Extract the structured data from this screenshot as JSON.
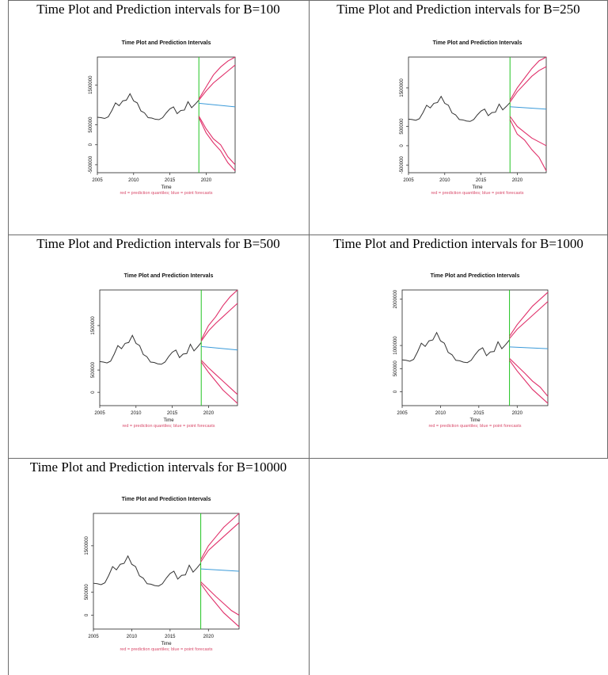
{
  "chart_data": [
    {
      "type": "line",
      "heading": "Time Plot and Prediction intervals for B=100",
      "title": "Time Plot and Prediction Intervals",
      "xlabel": "Time",
      "subtitle": "red = prediction quantiles; blue = point forecasts",
      "xlim": [
        2005,
        2024
      ],
      "ylim": [
        -700000,
        2200000
      ],
      "xticks": [
        2005,
        2010,
        2015,
        2020
      ],
      "yticks": [
        -500000,
        0,
        500000,
        1500000
      ],
      "ytick_labels": [
        "-500000",
        "0",
        "500000",
        "1500000"
      ],
      "split_year": 2019,
      "colors": {
        "history": "#333333",
        "intervals": "#e0306a",
        "forecast": "#3a9ad9",
        "split": "#22c422"
      },
      "history": {
        "x": [
          2005,
          2005.5,
          2006,
          2006.5,
          2007,
          2007.5,
          2008,
          2008.5,
          2009,
          2009.5,
          2010,
          2010.5,
          2011,
          2011.5,
          2012,
          2012.5,
          2013,
          2013.5,
          2014,
          2014.5,
          2015,
          2015.5,
          2016,
          2016.5,
          2017,
          2017.5,
          2018,
          2018.5,
          2019
        ],
        "y": [
          690000,
          680000,
          660000,
          700000,
          860000,
          1050000,
          980000,
          1100000,
          1120000,
          1280000,
          1100000,
          1050000,
          850000,
          800000,
          680000,
          670000,
          640000,
          630000,
          680000,
          800000,
          900000,
          950000,
          780000,
          860000,
          870000,
          1080000,
          930000,
          1020000,
          1120000
        ]
      },
      "forecast": {
        "x": [
          2019,
          2024
        ],
        "y": [
          1040000,
          950000
        ]
      },
      "upper_outer": {
        "x": [
          2019,
          2020,
          2021,
          2022,
          2023,
          2024
        ],
        "y": [
          1150000,
          1450000,
          1750000,
          1950000,
          2100000,
          2200000
        ]
      },
      "upper_inner": {
        "x": [
          2019,
          2020,
          2021,
          2022,
          2023,
          2024
        ],
        "y": [
          1120000,
          1350000,
          1550000,
          1700000,
          1850000,
          2000000
        ]
      },
      "lower_inner": {
        "x": [
          2019,
          2020,
          2021,
          2022,
          2023,
          2024
        ],
        "y": [
          720000,
          400000,
          150000,
          0,
          -300000,
          -500000
        ]
      },
      "lower_outer": {
        "x": [
          2019,
          2020,
          2021,
          2022,
          2023,
          2024
        ],
        "y": [
          680000,
          300000,
          50000,
          -150000,
          -450000,
          -650000
        ]
      }
    },
    {
      "type": "line",
      "heading": "Time Plot and Prediction intervals for B=250",
      "title": "Time Plot and Prediction Intervals",
      "xlabel": "Time",
      "subtitle": "red = prediction quantiles; blue = point forecasts",
      "xlim": [
        2005,
        2024
      ],
      "ylim": [
        -700000,
        2300000
      ],
      "xticks": [
        2005,
        2010,
        2015,
        2020
      ],
      "yticks": [
        -500000,
        0,
        500000,
        1500000
      ],
      "ytick_labels": [
        "-500000",
        "0",
        "500000",
        "1500000"
      ],
      "split_year": 2019,
      "colors": {
        "history": "#333333",
        "intervals": "#e0306a",
        "forecast": "#3a9ad9",
        "split": "#22c422"
      },
      "history": {
        "x": [
          2005,
          2005.5,
          2006,
          2006.5,
          2007,
          2007.5,
          2008,
          2008.5,
          2009,
          2009.5,
          2010,
          2010.5,
          2011,
          2011.5,
          2012,
          2012.5,
          2013,
          2013.5,
          2014,
          2014.5,
          2015,
          2015.5,
          2016,
          2016.5,
          2017,
          2017.5,
          2018,
          2018.5,
          2019
        ],
        "y": [
          690000,
          680000,
          660000,
          700000,
          860000,
          1050000,
          980000,
          1100000,
          1120000,
          1280000,
          1100000,
          1050000,
          850000,
          800000,
          680000,
          670000,
          640000,
          630000,
          680000,
          800000,
          900000,
          950000,
          780000,
          860000,
          870000,
          1080000,
          930000,
          1020000,
          1120000
        ]
      },
      "forecast": {
        "x": [
          2019,
          2024
        ],
        "y": [
          1010000,
          950000
        ]
      },
      "upper_outer": {
        "x": [
          2019,
          2020,
          2021,
          2022,
          2023,
          2024
        ],
        "y": [
          1180000,
          1500000,
          1750000,
          2000000,
          2200000,
          2300000
        ]
      },
      "upper_inner": {
        "x": [
          2019,
          2020,
          2021,
          2022,
          2023,
          2024
        ],
        "y": [
          1130000,
          1400000,
          1600000,
          1800000,
          1950000,
          2050000
        ]
      },
      "lower_inner": {
        "x": [
          2019,
          2020,
          2021,
          2022,
          2023,
          2024
        ],
        "y": [
          760000,
          500000,
          350000,
          200000,
          100000,
          0
        ]
      },
      "lower_outer": {
        "x": [
          2019,
          2020,
          2021,
          2022,
          2023,
          2024
        ],
        "y": [
          680000,
          300000,
          150000,
          -100000,
          -300000,
          -650000
        ]
      }
    },
    {
      "type": "line",
      "heading": "Time Plot and Prediction intervals for B=500",
      "title": "Time Plot and Prediction Intervals",
      "xlabel": "Time",
      "subtitle": "red = prediction quantiles; blue = point forecasts",
      "xlim": [
        2005,
        2024
      ],
      "ylim": [
        -300000,
        2300000
      ],
      "xticks": [
        2005,
        2010,
        2015,
        2020
      ],
      "yticks": [
        0,
        500000,
        1500000
      ],
      "ytick_labels": [
        "0",
        "500000",
        "1500000"
      ],
      "split_year": 2019,
      "colors": {
        "history": "#333333",
        "intervals": "#e0306a",
        "forecast": "#3a9ad9",
        "split": "#22c422"
      },
      "history": {
        "x": [
          2005,
          2005.5,
          2006,
          2006.5,
          2007,
          2007.5,
          2008,
          2008.5,
          2009,
          2009.5,
          2010,
          2010.5,
          2011,
          2011.5,
          2012,
          2012.5,
          2013,
          2013.5,
          2014,
          2014.5,
          2015,
          2015.5,
          2016,
          2016.5,
          2017,
          2017.5,
          2018,
          2018.5,
          2019
        ],
        "y": [
          690000,
          680000,
          660000,
          700000,
          860000,
          1050000,
          980000,
          1100000,
          1120000,
          1280000,
          1100000,
          1050000,
          850000,
          800000,
          680000,
          670000,
          640000,
          630000,
          680000,
          800000,
          900000,
          950000,
          780000,
          860000,
          870000,
          1080000,
          930000,
          1020000,
          1120000
        ]
      },
      "forecast": {
        "x": [
          2019,
          2024
        ],
        "y": [
          1030000,
          950000
        ]
      },
      "upper_outer": {
        "x": [
          2019,
          2020,
          2021,
          2022,
          2023,
          2024
        ],
        "y": [
          1180000,
          1500000,
          1700000,
          1950000,
          2150000,
          2300000
        ]
      },
      "upper_inner": {
        "x": [
          2019,
          2020,
          2021,
          2022,
          2023,
          2024
        ],
        "y": [
          1150000,
          1380000,
          1550000,
          1700000,
          1850000,
          2000000
        ]
      },
      "lower_inner": {
        "x": [
          2019,
          2020,
          2021,
          2022,
          2023,
          2024
        ],
        "y": [
          720000,
          550000,
          400000,
          250000,
          100000,
          -50000
        ]
      },
      "lower_outer": {
        "x": [
          2019,
          2020,
          2021,
          2022,
          2023,
          2024
        ],
        "y": [
          680000,
          450000,
          250000,
          50000,
          -100000,
          -250000
        ]
      }
    },
    {
      "type": "line",
      "heading": "Time Plot and Prediction intervals for B=1000",
      "title": "Time Plot and Prediction Intervals",
      "xlabel": "Time",
      "subtitle": "red = prediction quantiles; blue = point forecasts",
      "xlim": [
        2005,
        2024
      ],
      "ylim": [
        -300000,
        2200000
      ],
      "xticks": [
        2005,
        2010,
        2015,
        2020
      ],
      "yticks": [
        0,
        500000,
        1000000,
        2000000
      ],
      "ytick_labels": [
        "0",
        "500000",
        "1000000",
        "2000000"
      ],
      "split_year": 2019,
      "colors": {
        "history": "#333333",
        "intervals": "#e0306a",
        "forecast": "#3a9ad9",
        "split": "#22c422"
      },
      "history": {
        "x": [
          2005,
          2005.5,
          2006,
          2006.5,
          2007,
          2007.5,
          2008,
          2008.5,
          2009,
          2009.5,
          2010,
          2010.5,
          2011,
          2011.5,
          2012,
          2012.5,
          2013,
          2013.5,
          2014,
          2014.5,
          2015,
          2015.5,
          2016,
          2016.5,
          2017,
          2017.5,
          2018,
          2018.5,
          2019
        ],
        "y": [
          690000,
          680000,
          660000,
          700000,
          860000,
          1050000,
          980000,
          1100000,
          1120000,
          1280000,
          1100000,
          1050000,
          850000,
          800000,
          680000,
          670000,
          640000,
          630000,
          680000,
          800000,
          900000,
          950000,
          780000,
          860000,
          870000,
          1080000,
          930000,
          1020000,
          1120000
        ]
      },
      "forecast": {
        "x": [
          2019,
          2024
        ],
        "y": [
          970000,
          930000
        ]
      },
      "upper_outer": {
        "x": [
          2019,
          2020,
          2021,
          2022,
          2023,
          2024
        ],
        "y": [
          1200000,
          1450000,
          1650000,
          1850000,
          2000000,
          2150000
        ]
      },
      "upper_inner": {
        "x": [
          2019,
          2020,
          2021,
          2022,
          2023,
          2024
        ],
        "y": [
          1150000,
          1350000,
          1500000,
          1650000,
          1800000,
          1950000
        ]
      },
      "lower_inner": {
        "x": [
          2019,
          2020,
          2021,
          2022,
          2023,
          2024
        ],
        "y": [
          720000,
          560000,
          400000,
          230000,
          100000,
          -100000
        ]
      },
      "lower_outer": {
        "x": [
          2019,
          2020,
          2021,
          2022,
          2023,
          2024
        ],
        "y": [
          680000,
          450000,
          250000,
          50000,
          -100000,
          -250000
        ]
      }
    },
    {
      "type": "line",
      "heading": "Time Plot and Prediction intervals for B=10000",
      "title": "Time Plot and Prediction Intervals",
      "xlabel": "Time",
      "subtitle": "red = prediction quantiles; blue = point forecasts",
      "xlim": [
        2005,
        2024
      ],
      "ylim": [
        -300000,
        2200000
      ],
      "xticks": [
        2005,
        2010,
        2015,
        2020
      ],
      "yticks": [
        0,
        500000,
        1500000
      ],
      "ytick_labels": [
        "0",
        "500000",
        "1500000"
      ],
      "split_year": 2019,
      "colors": {
        "history": "#333333",
        "intervals": "#e0306a",
        "forecast": "#3a9ad9",
        "split": "#22c422"
      },
      "history": {
        "x": [
          2005,
          2005.5,
          2006,
          2006.5,
          2007,
          2007.5,
          2008,
          2008.5,
          2009,
          2009.5,
          2010,
          2010.5,
          2011,
          2011.5,
          2012,
          2012.5,
          2013,
          2013.5,
          2014,
          2014.5,
          2015,
          2015.5,
          2016,
          2016.5,
          2017,
          2017.5,
          2018,
          2018.5,
          2019
        ],
        "y": [
          690000,
          680000,
          660000,
          700000,
          860000,
          1050000,
          980000,
          1100000,
          1120000,
          1280000,
          1100000,
          1050000,
          850000,
          800000,
          680000,
          670000,
          640000,
          630000,
          680000,
          800000,
          900000,
          950000,
          780000,
          860000,
          870000,
          1080000,
          930000,
          1020000,
          1120000
        ]
      },
      "forecast": {
        "x": [
          2019,
          2024
        ],
        "y": [
          1000000,
          950000
        ]
      },
      "upper_outer": {
        "x": [
          2019,
          2020,
          2021,
          2022,
          2023,
          2024
        ],
        "y": [
          1200000,
          1500000,
          1700000,
          1900000,
          2050000,
          2200000
        ]
      },
      "upper_inner": {
        "x": [
          2019,
          2020,
          2021,
          2022,
          2023,
          2024
        ],
        "y": [
          1150000,
          1400000,
          1550000,
          1700000,
          1850000,
          2000000
        ]
      },
      "lower_inner": {
        "x": [
          2019,
          2020,
          2021,
          2022,
          2023,
          2024
        ],
        "y": [
          720000,
          560000,
          400000,
          250000,
          100000,
          0
        ]
      },
      "lower_outer": {
        "x": [
          2019,
          2020,
          2021,
          2022,
          2023,
          2024
        ],
        "y": [
          680000,
          450000,
          250000,
          50000,
          -100000,
          -250000
        ]
      }
    }
  ]
}
